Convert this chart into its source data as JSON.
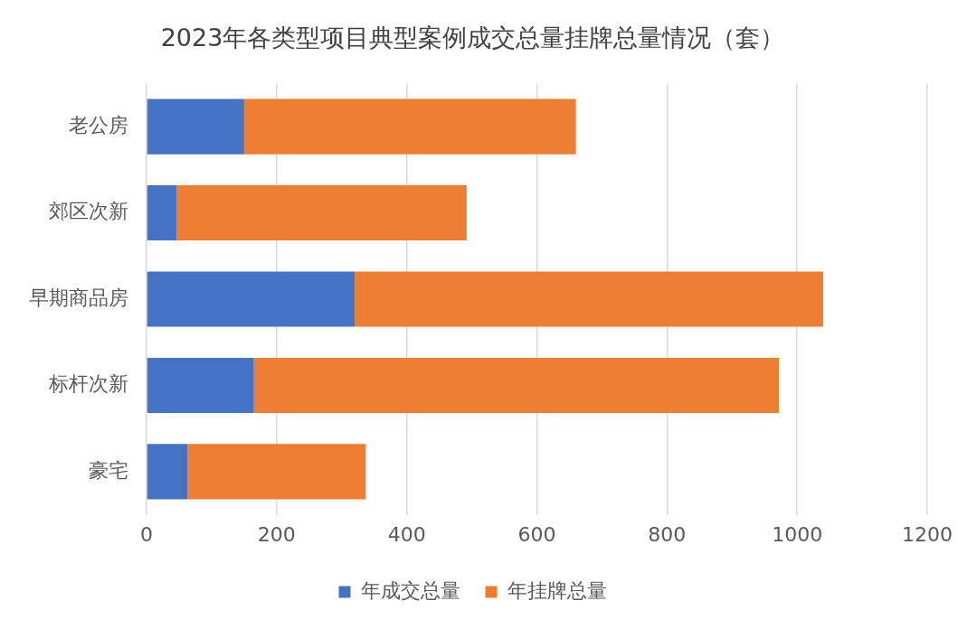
{
  "chart_data": {
    "type": "bar",
    "title": "2023年各类型项目典型案例成交总量挂牌总量情况（套）",
    "orientation": "horizontal",
    "stacked": true,
    "categories": [
      "老公房",
      "郊区次新",
      "早期商品房",
      "标杆次新",
      "豪宅"
    ],
    "series": [
      {
        "name": "年成交总量",
        "color": "#4472c4",
        "values": [
          150,
          46,
          320,
          165,
          63
        ]
      },
      {
        "name": "年挂牌总量",
        "color": "#ed7d31",
        "values": [
          510,
          446,
          720,
          807,
          274
        ]
      }
    ],
    "xlim": [
      0,
      1200
    ],
    "xticks": [
      0,
      200,
      400,
      600,
      800,
      1000,
      1200
    ],
    "grid": "x",
    "legend": "bottom"
  }
}
